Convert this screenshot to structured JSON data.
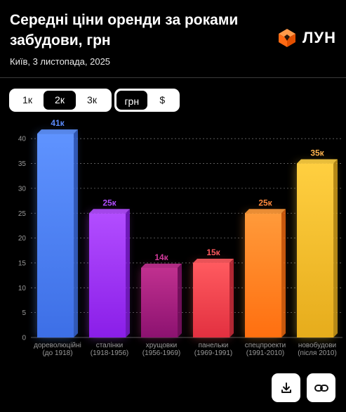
{
  "header": {
    "title": "Середні ціни оренди за роками забудови, грн",
    "subtitle": "Київ, 3 листопада, 2025"
  },
  "brand": {
    "name": "ЛУН",
    "logo_icon": "orange-cube-icon",
    "color": "#ff6a13"
  },
  "controls": {
    "rooms": [
      {
        "label": "1к",
        "active": false
      },
      {
        "label": "2к",
        "active": true
      },
      {
        "label": "3к",
        "active": false
      }
    ],
    "currency": [
      {
        "label": "грн",
        "active": true
      },
      {
        "label": "$",
        "active": false
      }
    ]
  },
  "actions": {
    "download_icon": "download-icon",
    "link_icon": "link-icon"
  },
  "chart_data": {
    "type": "bar",
    "ylim": [
      0,
      40
    ],
    "yticks": [
      0,
      5,
      10,
      15,
      20,
      25,
      30,
      35,
      40
    ],
    "grid": true,
    "categories": [
      [
        "дореволюційні",
        "(до 1918)"
      ],
      [
        "сталінки",
        "(1918-1956)"
      ],
      [
        "хрущовки",
        "(1956-1969)"
      ],
      [
        "панельки",
        "(1969-1991)"
      ],
      [
        "спецпроекти",
        "(1991-2010)"
      ],
      [
        "новобудови",
        "(після 2010)"
      ]
    ],
    "values": [
      41,
      25,
      14,
      15,
      25,
      35
    ],
    "value_labels": [
      "41к",
      "25к",
      "14к",
      "15к",
      "25к",
      "35к"
    ],
    "colors": [
      [
        "#3d6fe6",
        "#5f93ff"
      ],
      [
        "#8a1ee8",
        "#b24dff"
      ],
      [
        "#8c1270",
        "#c0308f"
      ],
      [
        "#e23040",
        "#ff5a5f"
      ],
      [
        "#ff6f10",
        "#ff9a3a"
      ],
      [
        "#e6ac1c",
        "#ffcf40"
      ]
    ],
    "label_colors": [
      "#5c8cff",
      "#b04cff",
      "#d03a9a",
      "#ff5a5f",
      "#ff8a3d",
      "#ffb34d"
    ]
  }
}
